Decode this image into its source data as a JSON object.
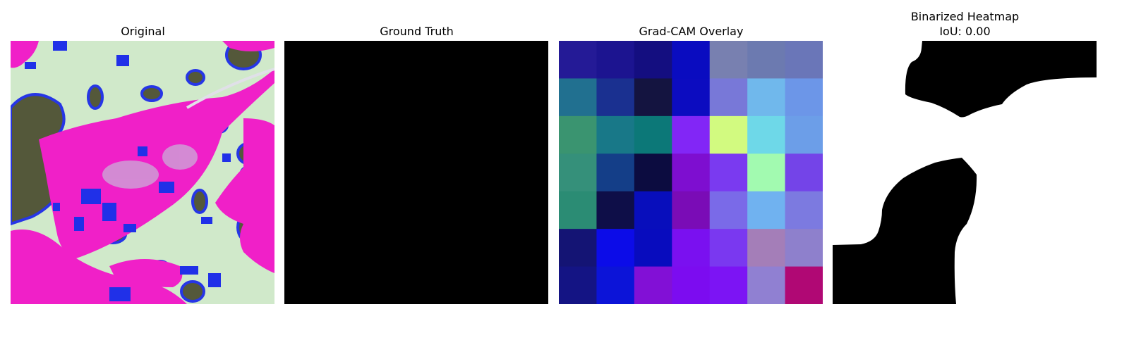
{
  "panels": [
    {
      "title": "Original"
    },
    {
      "title": "Ground Truth"
    },
    {
      "title": "Grad-CAM Overlay"
    },
    {
      "title_line1": "Binarized Heatmap",
      "title_line2": "IoU: 0.00"
    }
  ],
  "gradcam_grid": [
    [
      "#241a96",
      "#1c1490",
      "#140e80",
      "#0a0cc0",
      "#7880b0",
      "#6c7ab0",
      "#6a76b8"
    ],
    [
      "#217090",
      "#1a3090",
      "#141440",
      "#0c0cc0",
      "#7878d8",
      "#70b8ec",
      "#6c96e8"
    ],
    [
      "#3a9470",
      "#187888",
      "#0c7878",
      "#8226f6",
      "#d2fa80",
      "#6ed8e8",
      "#6c9ee8"
    ],
    [
      "#35907a",
      "#143e88",
      "#0c0c40",
      "#7e0ed0",
      "#7a3af0",
      "#a2fab0",
      "#7444e8"
    ],
    [
      "#2b8c74",
      "#0e0e48",
      "#080ebc",
      "#7a0cb6",
      "#7a6ae8",
      "#70b2f0",
      "#7c7ae0"
    ],
    [
      "#141474",
      "#0c0ce8",
      "#080cbe",
      "#7a10f0",
      "#7a38f0",
      "#a47eb8",
      "#8e80cc"
    ],
    [
      "#141484",
      "#0c14d8",
      "#8210d6",
      "#7c0cf0",
      "#7c14f4",
      "#9080d2",
      "#b00874"
    ]
  ],
  "colors": {
    "mask_black": "#000000",
    "background": "#ffffff"
  }
}
